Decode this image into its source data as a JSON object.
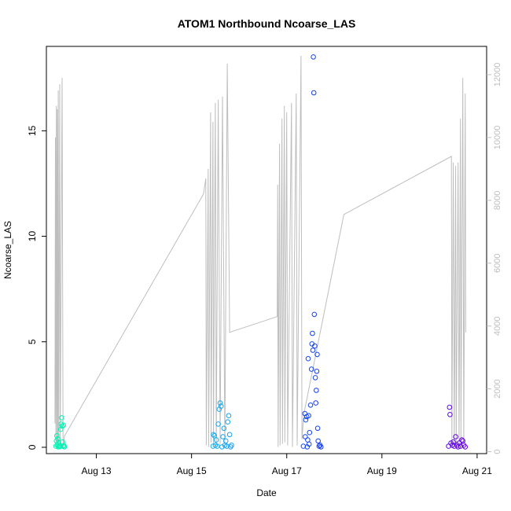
{
  "chart_data": {
    "type": "scatter",
    "title": "ATOM1 Northbound Ncoarse_LAS",
    "xlabel": "Date",
    "ylabel": "Ncoarse_LAS",
    "x_unit": "days",
    "x_tick_labels": [
      "Aug 13",
      "Aug 15",
      "Aug 17",
      "Aug 19",
      "Aug 21"
    ],
    "x_tick_values": [
      13,
      15,
      17,
      19,
      21
    ],
    "xlim": [
      11.95,
      21.2
    ],
    "ylim": [
      -0.3,
      19
    ],
    "y_ticks": [
      0,
      5,
      10,
      15
    ],
    "y2_ticks": [
      0,
      2000,
      4000,
      6000,
      8000,
      10000,
      12000
    ],
    "y2lim": [
      -60,
      12900
    ],
    "y2_color": "#bebebe",
    "point_color_scale": [
      "#00f5b2",
      "#16c8f0",
      "#1230f0",
      "#6a00e8"
    ],
    "points": [
      [
        12.15,
        0.05
      ],
      [
        12.16,
        0.3
      ],
      [
        12.17,
        0.55
      ],
      [
        12.18,
        0.1
      ],
      [
        12.19,
        0.4
      ],
      [
        12.2,
        0.02
      ],
      [
        12.21,
        0.2
      ],
      [
        12.22,
        0.05
      ],
      [
        12.23,
        0.1
      ],
      [
        12.24,
        0.03
      ],
      [
        12.25,
        0.85
      ],
      [
        12.26,
        1.1
      ],
      [
        12.27,
        1.4
      ],
      [
        12.28,
        1.0
      ],
      [
        12.29,
        0.25
      ],
      [
        12.3,
        0.05
      ],
      [
        12.31,
        1.05
      ],
      [
        12.32,
        0.08
      ],
      [
        12.33,
        0.02
      ],
      [
        15.45,
        0.05
      ],
      [
        15.46,
        0.6
      ],
      [
        15.48,
        0.55
      ],
      [
        15.5,
        0.1
      ],
      [
        15.52,
        0.35
      ],
      [
        15.54,
        0.05
      ],
      [
        15.56,
        1.1
      ],
      [
        15.58,
        1.8
      ],
      [
        15.6,
        2.1
      ],
      [
        15.62,
        1.95
      ],
      [
        15.64,
        0.02
      ],
      [
        15.66,
        0.5
      ],
      [
        15.68,
        0.9
      ],
      [
        15.7,
        0.1
      ],
      [
        15.72,
        0.3
      ],
      [
        15.74,
        0.05
      ],
      [
        15.76,
        1.2
      ],
      [
        15.78,
        1.5
      ],
      [
        15.8,
        0.6
      ],
      [
        15.82,
        0.02
      ],
      [
        15.84,
        0.1
      ],
      [
        17.35,
        0.05
      ],
      [
        17.38,
        1.6
      ],
      [
        17.4,
        1.3
      ],
      [
        17.42,
        1.45
      ],
      [
        17.44,
        0.35
      ],
      [
        17.46,
        1.5
      ],
      [
        17.48,
        0.7
      ],
      [
        17.5,
        2.0
      ],
      [
        17.52,
        3.7
      ],
      [
        17.54,
        5.4
      ],
      [
        17.55,
        4.6
      ],
      [
        17.56,
        18.5
      ],
      [
        17.57,
        16.8
      ],
      [
        17.58,
        6.3
      ],
      [
        17.59,
        4.8
      ],
      [
        17.6,
        3.3
      ],
      [
        17.62,
        2.7
      ],
      [
        17.63,
        3.6
      ],
      [
        17.64,
        4.4
      ],
      [
        17.65,
        0.9
      ],
      [
        17.66,
        0.3
      ],
      [
        17.68,
        0.05
      ],
      [
        17.7,
        0.1
      ],
      [
        17.72,
        0.02
      ],
      [
        17.45,
        4.2
      ],
      [
        17.53,
        4.9
      ],
      [
        17.61,
        2.1
      ],
      [
        17.39,
        0.5
      ],
      [
        17.43,
        0.02
      ],
      [
        17.47,
        0.15
      ],
      [
        20.4,
        0.05
      ],
      [
        20.42,
        1.9
      ],
      [
        20.43,
        1.55
      ],
      [
        20.45,
        0.2
      ],
      [
        20.48,
        0.1
      ],
      [
        20.5,
        0.25
      ],
      [
        20.52,
        0.05
      ],
      [
        20.55,
        0.5
      ],
      [
        20.58,
        0.1
      ],
      [
        20.6,
        0.02
      ],
      [
        20.62,
        0.2
      ],
      [
        20.65,
        0.05
      ],
      [
        20.68,
        0.35
      ],
      [
        20.7,
        0.3
      ],
      [
        20.72,
        0.1
      ],
      [
        20.75,
        0.02
      ]
    ],
    "line_points": [
      [
        12.13,
        900
      ],
      [
        12.14,
        10000
      ],
      [
        12.15,
        200
      ],
      [
        12.16,
        11000
      ],
      [
        12.17,
        300
      ],
      [
        12.18,
        10900
      ],
      [
        12.19,
        150
      ],
      [
        12.2,
        11500
      ],
      [
        12.21,
        250
      ],
      [
        12.23,
        11700
      ],
      [
        12.24,
        200
      ],
      [
        12.28,
        11900
      ],
      [
        12.3,
        100
      ],
      [
        12.33,
        500
      ],
      [
        15.25,
        8200
      ],
      [
        15.3,
        8700
      ],
      [
        15.31,
        200
      ],
      [
        15.35,
        9000
      ],
      [
        15.36,
        150
      ],
      [
        15.4,
        10800
      ],
      [
        15.41,
        300
      ],
      [
        15.45,
        10500
      ],
      [
        15.46,
        200
      ],
      [
        15.5,
        11100
      ],
      [
        15.52,
        150
      ],
      [
        15.56,
        11200
      ],
      [
        15.6,
        250
      ],
      [
        15.65,
        11300
      ],
      [
        15.7,
        200
      ],
      [
        15.75,
        12350
      ],
      [
        15.8,
        3800
      ],
      [
        16.8,
        4300
      ],
      [
        16.81,
        8500
      ],
      [
        16.82,
        150
      ],
      [
        16.85,
        9800
      ],
      [
        16.86,
        200
      ],
      [
        16.9,
        10600
      ],
      [
        16.91,
        250
      ],
      [
        16.95,
        11000
      ],
      [
        16.96,
        300
      ],
      [
        17.0,
        10800
      ],
      [
        17.02,
        200
      ],
      [
        17.1,
        11100
      ],
      [
        17.12,
        150
      ],
      [
        17.2,
        11400
      ],
      [
        17.22,
        200
      ],
      [
        17.3,
        12600
      ],
      [
        17.32,
        400
      ],
      [
        17.36,
        1200
      ],
      [
        18.2,
        7550
      ],
      [
        20.46,
        9400
      ],
      [
        20.47,
        200
      ],
      [
        20.5,
        9200
      ],
      [
        20.52,
        150
      ],
      [
        20.55,
        9100
      ],
      [
        20.56,
        250
      ],
      [
        20.6,
        9200
      ],
      [
        20.62,
        200
      ],
      [
        20.65,
        10600
      ],
      [
        20.66,
        300
      ],
      [
        20.7,
        11900
      ],
      [
        20.72,
        200
      ],
      [
        20.75,
        11400
      ],
      [
        20.76,
        3800
      ]
    ]
  }
}
